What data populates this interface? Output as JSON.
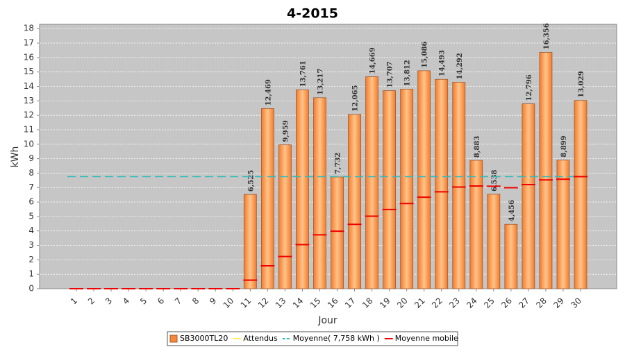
{
  "chart_data": {
    "type": "bar",
    "title": "4-2015",
    "x_label": "Jour",
    "y_label": "kWh",
    "categories": [
      "1",
      "2",
      "3",
      "4",
      "5",
      "6",
      "7",
      "8",
      "9",
      "10",
      "11",
      "12",
      "13",
      "14",
      "15",
      "16",
      "17",
      "18",
      "19",
      "20",
      "21",
      "22",
      "23",
      "24",
      "25",
      "26",
      "27",
      "28",
      "29",
      "30"
    ],
    "series": [
      {
        "name": "SB3000TL20",
        "color": "#f5883a",
        "kind": "bar",
        "values": [
          0,
          0,
          0,
          0,
          0,
          0,
          0,
          0,
          0,
          0,
          6.525,
          12.469,
          9.959,
          13.761,
          13.217,
          7.732,
          12.065,
          14.669,
          13.707,
          13.812,
          15.086,
          14.493,
          14.292,
          8.883,
          6.538,
          4.456,
          12.796,
          16.356,
          8.899,
          13.029
        ],
        "value_labels": [
          null,
          null,
          null,
          null,
          null,
          null,
          null,
          null,
          null,
          null,
          "6,525",
          "12,469",
          "9,959",
          "13,761",
          "13,217",
          "7,732",
          "12,065",
          "14,669",
          "13,707",
          "13,812",
          "15,086",
          "14,493",
          "14,292",
          "8,883",
          "6,538",
          "4,456",
          "12,796",
          "16,356",
          "8,899",
          "13,029"
        ]
      },
      {
        "name": "Attendus",
        "color": "#ffee66",
        "kind": "line",
        "values": [
          null,
          null,
          null,
          null,
          null,
          null,
          null,
          null,
          null,
          null,
          null,
          null,
          null,
          null,
          null,
          null,
          null,
          null,
          null,
          null,
          null,
          null,
          null,
          null,
          null,
          null,
          null,
          null,
          null,
          null
        ]
      },
      {
        "name": "Moyenne( 7,758 kWh )",
        "color": "#33bbbb",
        "kind": "hline",
        "value": 7.758
      },
      {
        "name": "Moyenne mobile",
        "color": "#ee0000",
        "kind": "step",
        "values": [
          0,
          0,
          0,
          0,
          0,
          0,
          0,
          0,
          0,
          0,
          0.593,
          1.583,
          2.227,
          3.051,
          3.729,
          3.979,
          4.455,
          5.022,
          5.479,
          5.896,
          6.333,
          6.704,
          7.034,
          7.111,
          7.088,
          6.987,
          7.202,
          7.529,
          7.576,
          7.758
        ]
      }
    ],
    "ylim": [
      0,
      18.3
    ],
    "yticks": [
      0,
      1,
      2,
      3,
      4,
      5,
      6,
      7,
      8,
      9,
      10,
      11,
      12,
      13,
      14,
      15,
      16,
      17,
      18
    ],
    "grid": true
  }
}
